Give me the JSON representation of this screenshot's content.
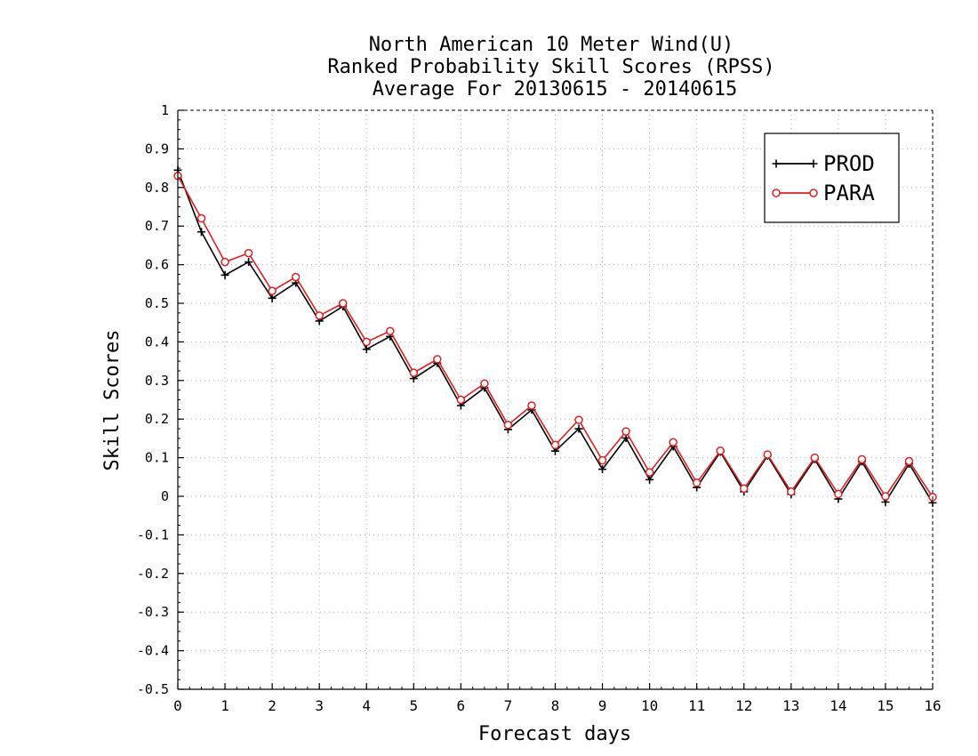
{
  "chart_data": {
    "type": "line",
    "title": [
      "North American 10 Meter Wind(U)",
      "Ranked Probability Skill Scores (RPSS)",
      "Average For 20130615 - 20140615"
    ],
    "xlabel": "Forecast days",
    "ylabel": "Skill Scores",
    "xlim": [
      0,
      16
    ],
    "ylim": [
      -0.5,
      1
    ],
    "x_ticks": [
      0,
      1,
      2,
      3,
      4,
      5,
      6,
      7,
      8,
      9,
      10,
      11,
      12,
      13,
      14,
      15,
      16
    ],
    "y_ticks": [
      -0.5,
      -0.4,
      -0.3,
      -0.2,
      -0.1,
      0,
      0.1,
      0.2,
      0.3,
      0.4,
      0.5,
      0.6,
      0.7,
      0.8,
      0.9,
      1
    ],
    "y_tick_labels": [
      "-0.5",
      "-0.4",
      "-0.3",
      "-0.2",
      "-0.1",
      "0",
      "0.1",
      "0.2",
      "0.3",
      "0.4",
      "0.5",
      "0.6",
      "0.7",
      "0.8",
      "0.9",
      "1"
    ],
    "x_minor_step": 0.25,
    "y_minor_step": 0.025,
    "grid": true,
    "legend_position": "top-right",
    "x": [
      0,
      0.5,
      1,
      1.5,
      2,
      2.5,
      3,
      3.5,
      4,
      4.5,
      5,
      5.5,
      6,
      6.5,
      7,
      7.5,
      8,
      8.5,
      9,
      9.5,
      10,
      10.5,
      11,
      11.5,
      12,
      12.5,
      13,
      13.5,
      14,
      14.5,
      15,
      15.5,
      16
    ],
    "series": [
      {
        "name": "PROD",
        "color": "#000000",
        "marker": "plus",
        "values": [
          0.845,
          0.685,
          0.573,
          0.607,
          0.513,
          0.553,
          0.454,
          0.492,
          0.381,
          0.414,
          0.305,
          0.345,
          0.235,
          0.281,
          0.173,
          0.224,
          0.117,
          0.175,
          0.07,
          0.151,
          0.043,
          0.129,
          0.023,
          0.115,
          0.012,
          0.105,
          0.005,
          0.096,
          -0.007,
          0.09,
          -0.015,
          0.084,
          -0.017
        ]
      },
      {
        "name": "PARA",
        "color": "#e02020",
        "marker": "circle",
        "values": [
          0.83,
          0.72,
          0.607,
          0.63,
          0.532,
          0.568,
          0.468,
          0.5,
          0.4,
          0.428,
          0.32,
          0.355,
          0.25,
          0.292,
          0.185,
          0.235,
          0.133,
          0.198,
          0.093,
          0.168,
          0.062,
          0.14,
          0.035,
          0.118,
          0.02,
          0.108,
          0.012,
          0.1,
          0.006,
          0.096,
          0.0,
          0.091,
          -0.002
        ]
      }
    ]
  }
}
